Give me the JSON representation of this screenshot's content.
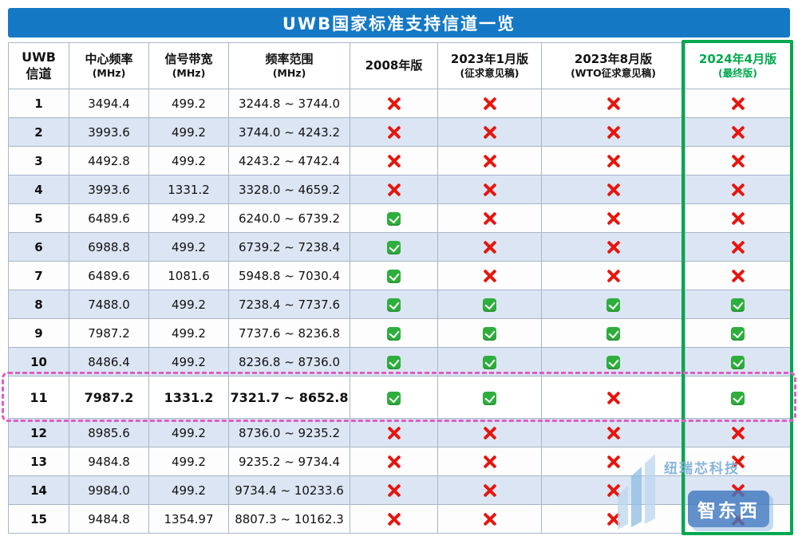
{
  "title": "UWB国家标准支持信道一览",
  "chart_data": {
    "type": "table",
    "title": "UWB国家标准支持信道一览",
    "columns": [
      {
        "key": "channel",
        "title": "UWB",
        "subtitle": "信道"
      },
      {
        "key": "center_mhz",
        "title": "中心频率",
        "subtitle": "(MHz)"
      },
      {
        "key": "bandwidth_mhz",
        "title": "信号带宽",
        "subtitle": "(MHz)"
      },
      {
        "key": "range_mhz",
        "title": "频率范围",
        "subtitle": "(MHz)"
      },
      {
        "key": "v2008",
        "title": "2008年版",
        "subtitle": ""
      },
      {
        "key": "v2023_jan",
        "title": "2023年1月版",
        "subtitle": "(征求意见稿)"
      },
      {
        "key": "v2023_aug",
        "title": "2023年8月版",
        "subtitle": "(WTO征求意见稿)"
      },
      {
        "key": "v2024_apr",
        "title": "2024年4月版",
        "subtitle": "(最终版)",
        "accent": true
      }
    ],
    "rows": [
      {
        "channel": "1",
        "center_mhz": "3494.4",
        "bandwidth_mhz": "499.2",
        "range_mhz": "3244.8 ~ 3744.0",
        "marks": [
          "no",
          "no",
          "no",
          "no"
        ]
      },
      {
        "channel": "2",
        "center_mhz": "3993.6",
        "bandwidth_mhz": "499.2",
        "range_mhz": "3744.0 ~ 4243.2",
        "marks": [
          "no",
          "no",
          "no",
          "no"
        ]
      },
      {
        "channel": "3",
        "center_mhz": "4492.8",
        "bandwidth_mhz": "499.2",
        "range_mhz": "4243.2 ~ 4742.4",
        "marks": [
          "no",
          "no",
          "no",
          "no"
        ]
      },
      {
        "channel": "4",
        "center_mhz": "3993.6",
        "bandwidth_mhz": "1331.2",
        "range_mhz": "3328.0 ~ 4659.2",
        "marks": [
          "no",
          "no",
          "no",
          "no"
        ]
      },
      {
        "channel": "5",
        "center_mhz": "6489.6",
        "bandwidth_mhz": "499.2",
        "range_mhz": "6240.0 ~ 6739.2",
        "marks": [
          "yes",
          "no",
          "no",
          "no"
        ]
      },
      {
        "channel": "6",
        "center_mhz": "6988.8",
        "bandwidth_mhz": "499.2",
        "range_mhz": "6739.2 ~ 7238.4",
        "marks": [
          "yes",
          "no",
          "no",
          "no"
        ]
      },
      {
        "channel": "7",
        "center_mhz": "6489.6",
        "bandwidth_mhz": "1081.6",
        "range_mhz": "5948.8 ~ 7030.4",
        "marks": [
          "yes",
          "no",
          "no",
          "no"
        ]
      },
      {
        "channel": "8",
        "center_mhz": "7488.0",
        "bandwidth_mhz": "499.2",
        "range_mhz": "7238.4 ~ 7737.6",
        "marks": [
          "yes",
          "yes",
          "yes",
          "yes"
        ]
      },
      {
        "channel": "9",
        "center_mhz": "7987.2",
        "bandwidth_mhz": "499.2",
        "range_mhz": "7737.6 ~ 8236.8",
        "marks": [
          "yes",
          "yes",
          "yes",
          "yes"
        ]
      },
      {
        "channel": "10",
        "center_mhz": "8486.4",
        "bandwidth_mhz": "499.2",
        "range_mhz": "8236.8 ~ 8736.0",
        "marks": [
          "yes",
          "yes",
          "yes",
          "yes"
        ]
      },
      {
        "channel": "11",
        "center_mhz": "7987.2",
        "bandwidth_mhz": "1331.2",
        "range_mhz": "7321.7 ~ 8652.8",
        "marks": [
          "yes",
          "yes",
          "no",
          "yes"
        ]
      },
      {
        "channel": "12",
        "center_mhz": "8985.6",
        "bandwidth_mhz": "499.2",
        "range_mhz": "8736.0 ~ 9235.2",
        "marks": [
          "no",
          "no",
          "no",
          "no"
        ]
      },
      {
        "channel": "13",
        "center_mhz": "9484.8",
        "bandwidth_mhz": "499.2",
        "range_mhz": "9235.2 ~ 9734.4",
        "marks": [
          "no",
          "no",
          "no",
          "no"
        ]
      },
      {
        "channel": "14",
        "center_mhz": "9984.0",
        "bandwidth_mhz": "499.2",
        "range_mhz": "9734.4 ~ 10233.6",
        "marks": [
          "no",
          "no",
          "no",
          "no"
        ]
      },
      {
        "channel": "15",
        "center_mhz": "9484.8",
        "bandwidth_mhz": "1354.97",
        "range_mhz": "8807.3 ~ 10162.3",
        "marks": [
          "no",
          "no",
          "no",
          "no"
        ]
      }
    ],
    "highlight": {
      "row_channel": "11",
      "column_title": "2024年4月版 (最终版)"
    }
  },
  "watermark": {
    "company": "纽瑞芯科技",
    "badge": "智东西"
  },
  "colors": {
    "title_bar": "#1478c5",
    "accent_green": "#00a84e",
    "highlight_pink": "#dd5ec6",
    "check_green": "#2fae3d",
    "cross_red": "#e8150d",
    "row_alt": "#dbe5f3"
  }
}
